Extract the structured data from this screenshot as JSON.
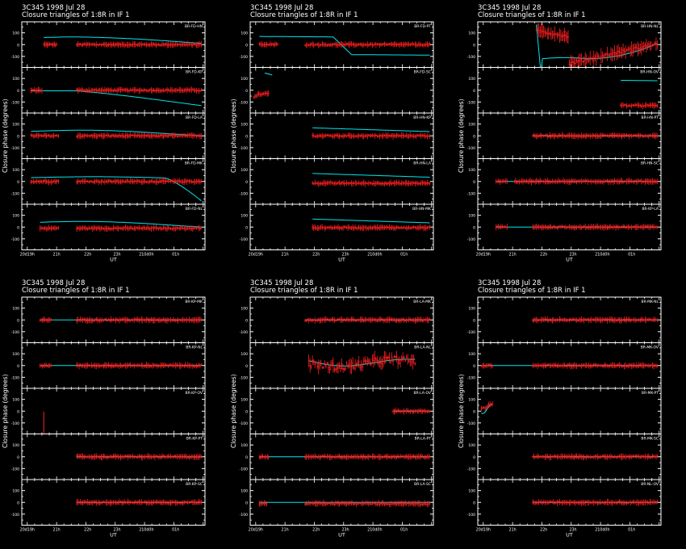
{
  "figure": {
    "background": "#000000",
    "axis_color": "#ffffff",
    "data_color": "#ff2020",
    "model_color": "#00e5ee"
  },
  "chart_data": [
    {
      "type": "scatter",
      "header": [
        "3C345   1998 Jul 28",
        "Closure triangles of 1:8R in IF 1"
      ],
      "xlabel": "UT",
      "ylabel": "Closure phase   (degrees)",
      "x_tick_labels": [
        "20d19h",
        "21h",
        "22h",
        "23h",
        "210d0h",
        "01h"
      ],
      "y_tick_labels": [
        "100",
        "0",
        "-100"
      ],
      "ylim": [
        -180,
        180
      ],
      "panels": [
        {
          "triangle": "BR-FD-HN",
          "model": "arc_high",
          "data": "full_gap",
          "seg_a": [
            0.12,
            0.19
          ],
          "seg_b": [
            0.3,
            0.98
          ],
          "offset": 0
        },
        {
          "triangle": "BR-FD-KP",
          "model": "descend_low",
          "data": "full_gap",
          "seg_a": [
            0.05,
            0.11
          ],
          "seg_b": [
            0.3,
            0.98
          ],
          "offset": 0
        },
        {
          "triangle": "BR-FD-LA",
          "model": "arc_mid",
          "data": "full_gap",
          "seg_a": [
            0.05,
            0.2
          ],
          "seg_b": [
            0.3,
            0.98
          ],
          "offset": 0
        },
        {
          "triangle": "BR-FD-MK",
          "model": "flat_drop",
          "data": "full_gap",
          "seg_a": [
            0.05,
            0.2
          ],
          "seg_b": [
            0.3,
            0.98
          ],
          "offset": 0
        },
        {
          "triangle": "BR-FD-NL",
          "model": "arc_mid",
          "data": "full_gap",
          "seg_a": [
            0.1,
            0.2
          ],
          "seg_b": [
            0.3,
            0.98
          ],
          "offset": -10
        }
      ]
    },
    {
      "type": "scatter",
      "header": [
        "3C345   1998 Jul 28",
        "Closure triangles of 1:8R in IF 1"
      ],
      "xlabel": "UT",
      "ylabel": "Closure phase   (degrees)",
      "x_tick_labels": [
        "20d19h",
        "21h",
        "22h",
        "23h",
        "210d0h",
        "01h"
      ],
      "y_tick_labels": [
        "100",
        "0",
        "-100"
      ],
      "ylim": [
        -180,
        180
      ],
      "panels": [
        {
          "triangle": "BR-FD-PT",
          "model": "high_drop",
          "data": "full_gap",
          "seg_a": [
            0.05,
            0.15
          ],
          "seg_b": [
            0.3,
            0.98
          ],
          "offset": 0
        },
        {
          "triangle": "BR-FD-SC",
          "model": "steep_short",
          "data": "steep_short",
          "seg_a": [
            0.02,
            0.1
          ],
          "seg_b": [
            0,
            0
          ],
          "offset": 0
        },
        {
          "triangle": "BR-HN-KP",
          "model": "decline_mid",
          "data": "late",
          "seg_a": [
            0.34,
            0.98
          ],
          "seg_b": [
            0,
            0
          ],
          "offset": 0
        },
        {
          "triangle": "BR-HN-LA",
          "model": "decline_mid",
          "data": "late",
          "seg_a": [
            0.34,
            0.98
          ],
          "seg_b": [
            0,
            0
          ],
          "offset": -15
        },
        {
          "triangle": "BR-HN-MK",
          "model": "decline_mid",
          "data": "late",
          "seg_a": [
            0.34,
            0.98
          ],
          "seg_b": [
            0,
            0
          ],
          "offset": -5
        }
      ]
    },
    {
      "type": "scatter",
      "header": [
        "3C345   1998 Jul 28",
        "Closure triangles of 1:8R in IF 1"
      ],
      "xlabel": "UT",
      "ylabel": "Closure phase   (degrees)",
      "x_tick_labels": [
        "20d19h",
        "21h",
        "22h",
        "23h",
        "210d0h",
        "01h"
      ],
      "y_tick_labels": [
        "100",
        "0",
        "-100"
      ],
      "ylim": [
        -180,
        180
      ],
      "panels": [
        {
          "triangle": "BR-HN-NL",
          "model": "wild",
          "data": "wild",
          "seg_a": [
            0.32,
            0.98
          ],
          "seg_b": [
            0,
            0
          ],
          "offset": 0
        },
        {
          "triangle": "BR-HN-OV",
          "model": "late_high",
          "data": "late_low",
          "seg_a": [
            0.78,
            0.98
          ],
          "seg_b": [
            0,
            0
          ],
          "offset": 0
        },
        {
          "triangle": "BR-HN-PT",
          "model": "flat",
          "data": "late",
          "seg_a": [
            0.3,
            0.98
          ],
          "seg_b": [
            0,
            0
          ],
          "offset": 0
        },
        {
          "triangle": "BR-HN-SC",
          "model": "flat",
          "data": "full_gap",
          "seg_a": [
            0.1,
            0.16
          ],
          "seg_b": [
            0.2,
            0.98
          ],
          "offset": 0
        },
        {
          "triangle": "BR-KP-LA",
          "model": "flat",
          "data": "full_gap",
          "seg_a": [
            0.1,
            0.16
          ],
          "seg_b": [
            0.3,
            0.98
          ],
          "offset": 0
        }
      ]
    },
    {
      "type": "scatter",
      "header": [
        "3C345   1998 Jul 28",
        "Closure triangles of 1:8R in IF 1"
      ],
      "xlabel": "UT",
      "ylabel": "Closure phase   (degrees)",
      "x_tick_labels": [
        "20d19h",
        "21h",
        "22h",
        "23h",
        "210d0h",
        "01h"
      ],
      "y_tick_labels": [
        "100",
        "0",
        "-100"
      ],
      "ylim": [
        -180,
        180
      ],
      "panels": [
        {
          "triangle": "BR-KP-MK",
          "model": "flat",
          "data": "full_gap",
          "seg_a": [
            0.1,
            0.16
          ],
          "seg_b": [
            0.3,
            0.98
          ],
          "offset": 0
        },
        {
          "triangle": "BR-KP-NL",
          "model": "flat",
          "data": "full_gap",
          "seg_a": [
            0.1,
            0.16
          ],
          "seg_b": [
            0.3,
            0.98
          ],
          "offset": 0
        },
        {
          "triangle": "BR-KP-OV",
          "model": "none",
          "data": "single",
          "seg_a": [
            0.12,
            0.12
          ],
          "seg_b": [
            0,
            0
          ],
          "offset": -100
        },
        {
          "triangle": "BR-KP-PT",
          "model": "flat",
          "data": "late",
          "seg_a": [
            0.3,
            0.98
          ],
          "seg_b": [
            0,
            0
          ],
          "offset": 0
        },
        {
          "triangle": "BR-KP-SC",
          "model": "flat",
          "data": "late",
          "seg_a": [
            0.3,
            0.98
          ],
          "seg_b": [
            0,
            0
          ],
          "offset": 0
        }
      ]
    },
    {
      "type": "scatter",
      "header": [
        "3C345   1998 Jul 28",
        "Closure triangles of 1:8R in IF 1"
      ],
      "xlabel": "UT",
      "ylabel": "Closure phase   (degrees)",
      "x_tick_labels": [
        "20d19h",
        "21h",
        "22h",
        "23h",
        "210d0h",
        "01h"
      ],
      "y_tick_labels": [
        "100",
        "0",
        "-100"
      ],
      "ylim": [
        -180,
        180
      ],
      "panels": [
        {
          "triangle": "BR-LA-MK",
          "model": "flat",
          "data": "late",
          "seg_a": [
            0.3,
            0.98
          ],
          "seg_b": [
            0,
            0
          ],
          "offset": 0
        },
        {
          "triangle": "BR-LA-NL",
          "model": "wave",
          "data": "noisy_mid",
          "seg_a": [
            0.32,
            0.9
          ],
          "seg_b": [
            0,
            0
          ],
          "offset": 0
        },
        {
          "triangle": "BR-LA-OV",
          "model": "flat",
          "data": "late",
          "seg_a": [
            0.78,
            0.98
          ],
          "seg_b": [
            0,
            0
          ],
          "offset": 0
        },
        {
          "triangle": "BR-LA-PT",
          "model": "flat",
          "data": "full_gap",
          "seg_a": [
            0.05,
            0.1
          ],
          "seg_b": [
            0.3,
            0.98
          ],
          "offset": 0
        },
        {
          "triangle": "BR-LA-SC",
          "model": "flat",
          "data": "full_gap",
          "seg_a": [
            0.05,
            0.09
          ],
          "seg_b": [
            0.3,
            0.98
          ],
          "offset": -10
        }
      ]
    },
    {
      "type": "scatter",
      "header": [
        "3C345   1998 Jul 28",
        "Closure triangles of 1:8R in IF 1"
      ],
      "xlabel": "UT",
      "ylabel": "Closure phase   (degrees)",
      "x_tick_labels": [
        "20d19h",
        "21h",
        "22h",
        "23h",
        "210d0h",
        "01h"
      ],
      "y_tick_labels": [
        "100",
        "0",
        "-100"
      ],
      "ylim": [
        -180,
        180
      ],
      "panels": [
        {
          "triangle": "BR-MK-NL",
          "model": "flat",
          "data": "late",
          "seg_a": [
            0.3,
            0.98
          ],
          "seg_b": [
            0,
            0
          ],
          "offset": 0
        },
        {
          "triangle": "BR-MK-OV",
          "model": "flat",
          "data": "full_gap",
          "seg_a": [
            0.02,
            0.08
          ],
          "seg_b": [
            0.3,
            0.98
          ],
          "offset": 0
        },
        {
          "triangle": "BR-MK-PT",
          "model": "short_dip",
          "data": "short_dip",
          "seg_a": [
            0.02,
            0.08
          ],
          "seg_b": [
            0,
            0
          ],
          "offset": 0
        },
        {
          "triangle": "BR-MK-SC",
          "model": "flat",
          "data": "late",
          "seg_a": [
            0.3,
            0.98
          ],
          "seg_b": [
            0,
            0
          ],
          "offset": 0
        },
        {
          "triangle": "BR-NL-OV",
          "model": "flat",
          "data": "late",
          "seg_a": [
            0.3,
            0.98
          ],
          "seg_b": [
            0,
            0
          ],
          "offset": 0
        }
      ]
    }
  ]
}
